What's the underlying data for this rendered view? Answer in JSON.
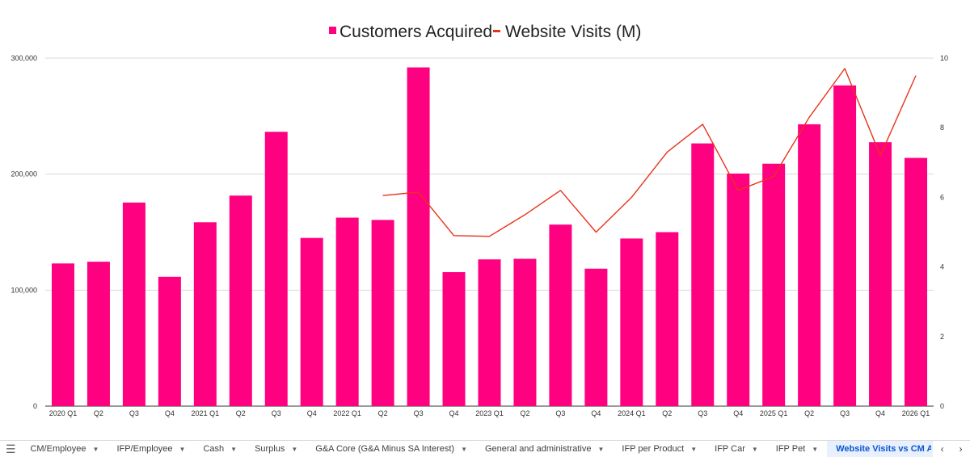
{
  "chart_data": {
    "type": "bar",
    "categories": [
      "2020 Q1",
      "Q2",
      "Q3",
      "Q4",
      "2021 Q1",
      "Q2",
      "Q3",
      "Q4",
      "2022 Q1",
      "Q2",
      "Q3",
      "Q4",
      "2023 Q1",
      "Q2",
      "Q3",
      "Q4",
      "2024 Q1",
      "Q2",
      "Q3",
      "Q4",
      "2025 Q1",
      "Q2",
      "Q3",
      "Q4",
      "2026 Q1"
    ],
    "series": [
      {
        "name": "Customers Acquired",
        "chart_type": "bar",
        "axis": "left",
        "color": "#ff0080",
        "values": [
          123000,
          124500,
          175500,
          111500,
          158500,
          181500,
          236500,
          145000,
          162500,
          160500,
          292000,
          115500,
          126500,
          127000,
          156500,
          118500,
          144500,
          150000,
          226500,
          200500,
          209000,
          243000,
          276500,
          227500,
          214000
        ]
      },
      {
        "name": "Website Visits (M)",
        "chart_type": "line",
        "axis": "right",
        "color": "#e8331c",
        "values": [
          null,
          null,
          null,
          null,
          null,
          null,
          null,
          null,
          null,
          6.05,
          6.15,
          4.9,
          4.88,
          5.5,
          6.2,
          5.0,
          6.0,
          7.3,
          8.1,
          6.2,
          6.6,
          8.3,
          9.7,
          7.2,
          9.5
        ]
      }
    ],
    "ylim": [
      0,
      300000
    ],
    "y_ticks": [
      "0",
      "100,000",
      "200,000",
      "300,000"
    ],
    "y_tick_values": [
      0,
      100000,
      200000,
      300000
    ],
    "y2lim": [
      0,
      10
    ],
    "y2_ticks": [
      "0",
      "2",
      "4",
      "6",
      "8",
      "10"
    ],
    "y2_tick_values": [
      0,
      2,
      4,
      6,
      8,
      10
    ],
    "legend": "top-center",
    "grid": true,
    "title": "",
    "xlabel": "",
    "ylabel": ""
  },
  "legend": {
    "customers_label": "Customers Acquired",
    "visits_label": "Website Visits (M)"
  },
  "sheet_tabs": {
    "menu_icon": "hamburger-menu-icon",
    "items": [
      {
        "label": "CM/Employee"
      },
      {
        "label": "IFP/Employee"
      },
      {
        "label": "Cash"
      },
      {
        "label": "Surplus"
      },
      {
        "label": "G&A Core (G&A Minus SA Interest)"
      },
      {
        "label": "General and administrative"
      },
      {
        "label": "IFP per Product"
      },
      {
        "label": "IFP Car"
      },
      {
        "label": "IFP Pet"
      }
    ],
    "active_label": "Website Visits vs CM Acqui",
    "prev_icon": "chevron-left-icon",
    "next_icon": "chevron-right-icon"
  }
}
